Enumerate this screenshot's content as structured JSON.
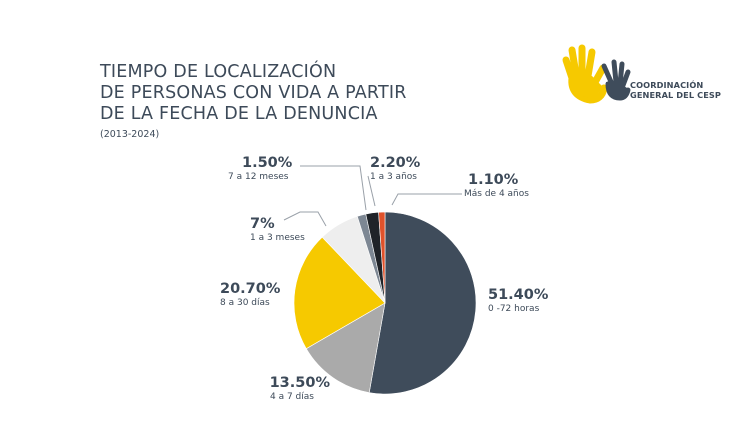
{
  "chart_data": {
    "type": "pie",
    "title_lines": [
      "TIEMPO DE LOCALIZACIÓN",
      "DE PERSONAS CON VIDA A PARTIR",
      "DE LA FECHA DE LA DENUNCIA"
    ],
    "subtitle": "(2013-2024)",
    "slices": [
      {
        "pct_label": "51.40%",
        "category": "0 -72 horas",
        "value": 51.4,
        "color": "#3f4c5b"
      },
      {
        "pct_label": "13.50%",
        "category": "4 a 7 días",
        "value": 13.5,
        "color": "#aaaaaa"
      },
      {
        "pct_label": "20.70%",
        "category": "8 a 30 días",
        "value": 20.7,
        "color": "#f6c900"
      },
      {
        "pct_label": "7%",
        "category": "1 a 3 meses",
        "value": 7.0,
        "color": "#eeeeee"
      },
      {
        "pct_label": "1.50%",
        "category": "7 a 12 meses",
        "value": 1.5,
        "color": "#7d8793"
      },
      {
        "pct_label": "2.20%",
        "category": "1 a 3 años",
        "value": 2.2,
        "color": "#1f2328"
      },
      {
        "pct_label": "1.10%",
        "category": "Más de 4 años",
        "value": 1.1,
        "color": "#e0522b"
      }
    ]
  },
  "logo": {
    "line1": "COORDINACIÓN",
    "line2": "GENERAL DEL CESP",
    "hand_colors": [
      "#f6c900",
      "#3f4c5b"
    ]
  }
}
